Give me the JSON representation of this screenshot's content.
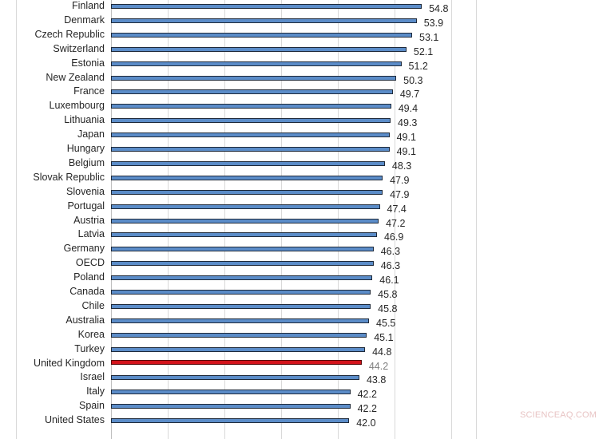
{
  "chart_data": {
    "type": "bar",
    "orientation": "horizontal",
    "title": "",
    "xlabel": "",
    "ylabel": "",
    "xlim": [
      0,
      60
    ],
    "grid": true,
    "gridline_values": [
      0,
      10,
      20,
      30,
      40,
      50,
      60
    ],
    "legend": null,
    "highlight_category": "United Kingdom",
    "colors": {
      "default": "#5b8cc8",
      "highlight": "#d3131b",
      "border": "#1f2a3a"
    },
    "categories": [
      "Finland",
      "Denmark",
      "Czech Republic",
      "Switzerland",
      "Estonia",
      "New Zealand",
      "France",
      "Luxembourg",
      "Lithuania",
      "Japan",
      "Hungary",
      "Belgium",
      "Slovak Republic",
      "Slovenia",
      "Portugal",
      "Austria",
      "Latvia",
      "Germany",
      "OECD",
      "Poland",
      "Canada",
      "Chile",
      "Australia",
      "Korea",
      "Turkey",
      "United Kingdom",
      "Israel",
      "Italy",
      "Spain",
      "United States"
    ],
    "values": [
      54.8,
      53.9,
      53.1,
      52.1,
      51.2,
      50.3,
      49.7,
      49.4,
      49.3,
      49.1,
      49.1,
      48.3,
      47.9,
      47.9,
      47.4,
      47.2,
      46.9,
      46.3,
      46.3,
      46.1,
      45.8,
      45.8,
      45.5,
      45.1,
      44.8,
      44.2,
      43.8,
      42.2,
      42.2,
      42.0
    ],
    "value_labels": [
      "54.8",
      "53.9",
      "53.1",
      "52.1",
      "51.2",
      "50.3",
      "49.7",
      "49.4",
      "49.3",
      "49.1",
      "49.1",
      "48.3",
      "47.9",
      "47.9",
      "47.4",
      "47.2",
      "46.9",
      "46.3",
      "46.3",
      "46.1",
      "45.8",
      "45.8",
      "45.5",
      "45.1",
      "44.8",
      "44.2",
      "43.8",
      "42.2",
      "42.2",
      "42.0"
    ]
  },
  "watermark": "SCIENCEAQ.COM"
}
